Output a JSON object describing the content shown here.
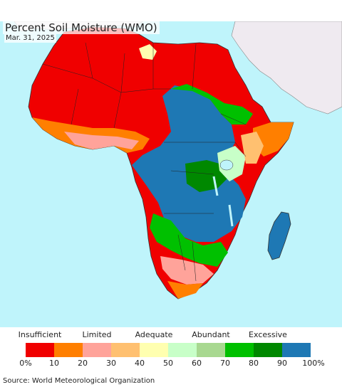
{
  "title": "Percent Soil Moisture (WMO)",
  "date": "Mar. 31, 2025",
  "source": "Source: World Meteorological Organization",
  "legend": {
    "categories": [
      {
        "label": "Insufficient",
        "center_value": 5
      },
      {
        "label": "Limited",
        "center_value": 25
      },
      {
        "label": "Adequate",
        "center_value": 45
      },
      {
        "label": "Abundant",
        "center_value": 65
      },
      {
        "label": "Excessive",
        "center_value": 85
      }
    ],
    "ticks": [
      "0%",
      "10",
      "20",
      "30",
      "40",
      "50",
      "60",
      "70",
      "80",
      "90",
      "100%"
    ],
    "bins": [
      {
        "from": 0,
        "to": 10,
        "color": "#f00000"
      },
      {
        "from": 10,
        "to": 20,
        "color": "#ff7f00"
      },
      {
        "from": 20,
        "to": 30,
        "color": "#ffa39a"
      },
      {
        "from": 30,
        "to": 40,
        "color": "#ffc070"
      },
      {
        "from": 40,
        "to": 50,
        "color": "#ffffb0"
      },
      {
        "from": 50,
        "to": 60,
        "color": "#c8ffc8"
      },
      {
        "from": 60,
        "to": 70,
        "color": "#a8d890"
      },
      {
        "from": 70,
        "to": 80,
        "color": "#00c000"
      },
      {
        "from": 80,
        "to": 90,
        "color": "#008800"
      },
      {
        "from": 90,
        "to": 100,
        "color": "#1e78b4"
      }
    ]
  },
  "colors": {
    "ocean": "#bff4fb",
    "no_data_land": "#efeaf0"
  }
}
